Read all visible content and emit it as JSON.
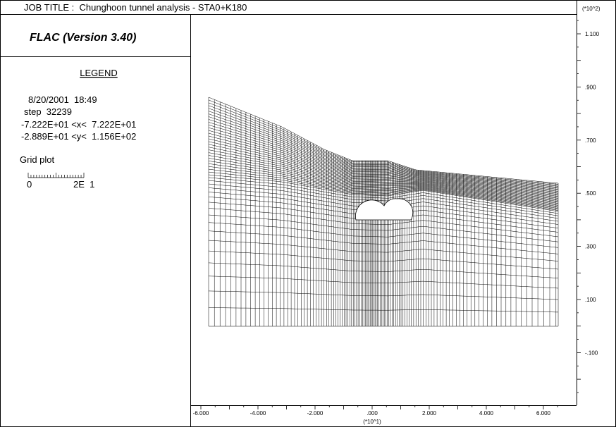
{
  "header": {
    "title": "JOB TITLE :  Chunghoon tunnel analysis - STA0+K180"
  },
  "legend": {
    "program": "FLAC (Version 3.40)",
    "heading": "LEGEND",
    "date": "8/20/2001  18:49",
    "step": "step  32239",
    "x_range": "-7.222E+01 <x<  7.222E+01",
    "y_range": "-2.889E+01 <y<  1.156E+02",
    "plot_type": "Grid plot",
    "scale_min": "0",
    "scale_max": "2E  1"
  },
  "y_axis": {
    "multiplier": "(*10^2)",
    "labels": [
      "1.100",
      ".900",
      ".700",
      ".500",
      ".300",
      ".100",
      "-.100"
    ]
  },
  "x_axis": {
    "multiplier": "(*10^1)",
    "labels": [
      "-6.000",
      "-4.000",
      "-2.000",
      ".000",
      "2.000",
      "4.000",
      "6.000"
    ]
  }
}
